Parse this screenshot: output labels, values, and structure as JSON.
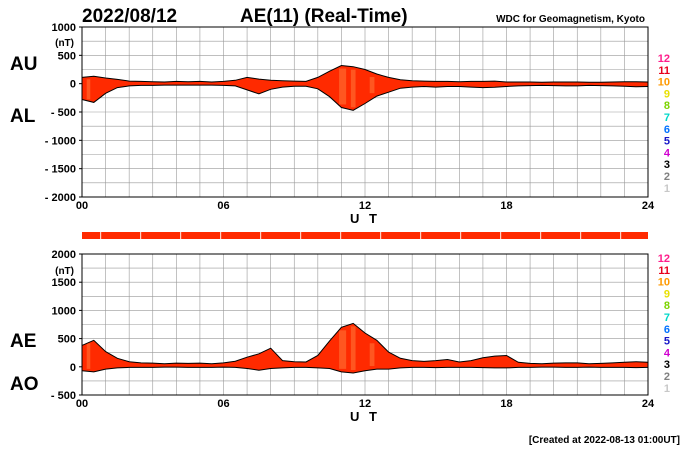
{
  "header": {
    "date": "2022/08/12",
    "title": "AE(11) (Real-Time)",
    "source": "WDC for Geomagnetism, Kyoto"
  },
  "footer": {
    "created": "[Created at 2022-08-13 01:00UT]"
  },
  "colors": {
    "fill": "#ff2a00",
    "highlight": "#ff7a3a",
    "grid": "#999999",
    "axis": "#000000",
    "text": "#000000"
  },
  "station_scale": [
    {
      "label": "12",
      "color": "#ff1e8c"
    },
    {
      "label": "11",
      "color": "#e8001c"
    },
    {
      "label": "10",
      "color": "#ff9900"
    },
    {
      "label": "9",
      "color": "#e8e000"
    },
    {
      "label": "8",
      "color": "#7cd400"
    },
    {
      "label": "7",
      "color": "#00d8c8"
    },
    {
      "label": "6",
      "color": "#0070ff"
    },
    {
      "label": "5",
      "color": "#1818c8"
    },
    {
      "label": "4",
      "color": "#d000d0"
    },
    {
      "label": "3",
      "color": "#000000"
    },
    {
      "label": "2",
      "color": "#808080"
    },
    {
      "label": "1",
      "color": "#c8c8c8"
    }
  ],
  "chart_data": [
    {
      "type": "area",
      "name": "AU-AL",
      "label_upper": "AU",
      "label_lower": "AL",
      "unit": "(nT)",
      "xlabel": "U T",
      "x_ticks": [
        "00",
        "06",
        "12",
        "18",
        "24"
      ],
      "y_ticks": [
        "1000",
        "500",
        "0",
        "- 500",
        "- 1000",
        "- 1500",
        "- 2000"
      ],
      "xlim": [
        0,
        24
      ],
      "ylim": [
        -2000,
        1000
      ],
      "grid": true,
      "x": [
        0,
        0.5,
        1,
        1.5,
        2,
        2.5,
        3,
        3.5,
        4,
        4.5,
        5,
        5.5,
        6,
        6.5,
        7,
        7.5,
        8,
        8.5,
        9,
        9.5,
        10,
        10.5,
        11,
        11.5,
        12,
        12.5,
        13,
        13.5,
        14,
        14.5,
        15,
        15.5,
        16,
        16.5,
        17,
        17.5,
        18,
        18.5,
        19,
        19.5,
        20,
        20.5,
        21,
        21.5,
        22,
        22.5,
        23,
        23.5,
        24
      ],
      "upper": [
        110,
        130,
        100,
        75,
        45,
        40,
        35,
        30,
        40,
        35,
        40,
        30,
        40,
        60,
        110,
        80,
        60,
        50,
        45,
        40,
        110,
        220,
        320,
        300,
        250,
        170,
        110,
        70,
        50,
        45,
        40,
        40,
        35,
        40,
        40,
        45,
        30,
        30,
        30,
        25,
        30,
        30,
        30,
        25,
        25,
        30,
        35,
        35,
        30
      ],
      "lower": [
        -280,
        -330,
        -170,
        -70,
        -40,
        -30,
        -30,
        -25,
        -25,
        -25,
        -25,
        -25,
        -30,
        -40,
        -110,
        -180,
        -100,
        -60,
        -45,
        -45,
        -90,
        -230,
        -420,
        -470,
        -350,
        -220,
        -150,
        -80,
        -60,
        -50,
        -60,
        -50,
        -50,
        -60,
        -70,
        -65,
        -50,
        -40,
        -35,
        -30,
        -35,
        -40,
        -40,
        -30,
        -35,
        -40,
        -45,
        -55,
        -50
      ]
    },
    {
      "type": "area",
      "name": "AE-AO",
      "label_upper": "AE",
      "label_lower": "AO",
      "unit": "(nT)",
      "xlabel": "U T",
      "x_ticks": [
        "00",
        "06",
        "12",
        "18",
        "24"
      ],
      "y_ticks": [
        "2000",
        "1500",
        "1000",
        "500",
        "0",
        "- 500"
      ],
      "xlim": [
        0,
        24
      ],
      "ylim": [
        -500,
        2000
      ],
      "grid": true,
      "x": [
        0,
        0.5,
        1,
        1.5,
        2,
        2.5,
        3,
        3.5,
        4,
        4.5,
        5,
        5.5,
        6,
        6.5,
        7,
        7.5,
        8,
        8.5,
        9,
        9.5,
        10,
        10.5,
        11,
        11.5,
        12,
        12.5,
        13,
        13.5,
        14,
        14.5,
        15,
        15.5,
        16,
        16.5,
        17,
        17.5,
        18,
        18.5,
        19,
        19.5,
        20,
        20.5,
        21,
        21.5,
        22,
        22.5,
        23,
        23.5,
        24
      ],
      "upper": [
        380,
        470,
        270,
        150,
        90,
        70,
        65,
        55,
        65,
        60,
        65,
        55,
        70,
        100,
        170,
        230,
        330,
        110,
        90,
        85,
        200,
        460,
        700,
        770,
        600,
        470,
        260,
        150,
        110,
        95,
        110,
        130,
        85,
        110,
        160,
        190,
        200,
        80,
        60,
        55,
        65,
        70,
        70,
        55,
        60,
        70,
        80,
        90,
        80
      ],
      "lower": [
        -70,
        -90,
        -40,
        -20,
        -10,
        -10,
        -10,
        -5,
        -5,
        -10,
        -10,
        -10,
        -5,
        -10,
        -30,
        -60,
        -30,
        -20,
        -10,
        -10,
        -20,
        -30,
        -90,
        -110,
        -70,
        -40,
        -40,
        -20,
        -10,
        -10,
        -15,
        -10,
        -10,
        -10,
        -15,
        -20,
        -20,
        -10,
        -10,
        -5,
        -5,
        -10,
        -10,
        -5,
        -10,
        -10,
        -10,
        -15,
        -10
      ]
    }
  ]
}
